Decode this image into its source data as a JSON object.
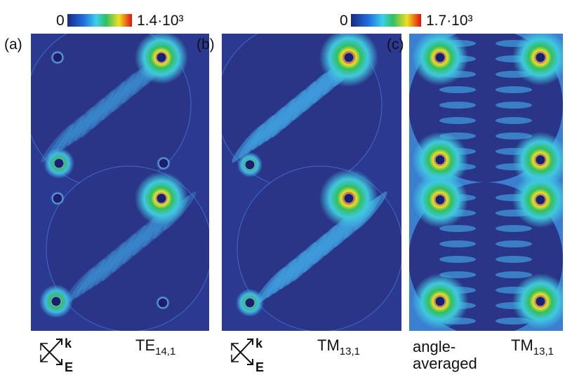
{
  "colorbars": [
    {
      "min": 0,
      "max": "1.4·10³"
    },
    {
      "min": 0,
      "max": "1.7·10³"
    }
  ],
  "panels": [
    {
      "label": "(a)",
      "k": "k",
      "E": "E",
      "mode": {
        "base": "TE",
        "sub": "14,1"
      }
    },
    {
      "label": "(b)",
      "k": "k",
      "E": "E",
      "mode": {
        "base": "TM",
        "sub": "13,1"
      }
    },
    {
      "label": "(c)",
      "note": [
        "angle-",
        "averaged"
      ],
      "mode": {
        "base": "TM",
        "sub": "13,1"
      }
    }
  ]
}
